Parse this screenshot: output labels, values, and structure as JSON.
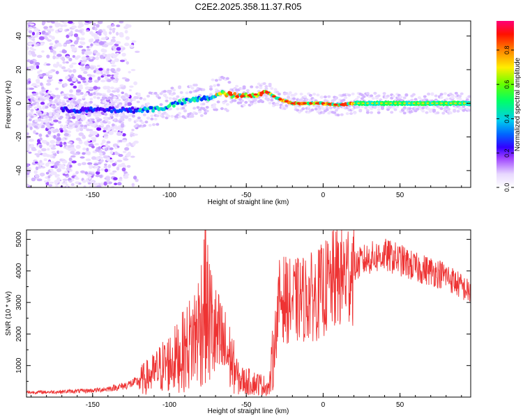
{
  "title": "C2E2.2025.358.11.37.R05",
  "chart_data": [
    {
      "type": "heatmap",
      "title": "C2E2.2025.358.11.37.R05",
      "xlabel": "Height of straight line (km)",
      "ylabel": "Frequency (Hz)",
      "xlim": [
        -193,
        96
      ],
      "ylim": [
        -50,
        49
      ],
      "xticks": [
        -150,
        -100,
        -50,
        0,
        50
      ],
      "yticks": [
        -40,
        -20,
        0,
        20,
        40
      ],
      "colorbar": {
        "label": "Normalized spectral amplitude",
        "range": [
          0,
          0.97
        ],
        "ticks": [
          0.0,
          0.2,
          0.4,
          0.6,
          0.8
        ]
      },
      "ridge": [
        {
          "x": -193,
          "y": -4
        },
        {
          "x": -160,
          "y": -4
        },
        {
          "x": -140,
          "y": -4
        },
        {
          "x": -120,
          "y": -4
        },
        {
          "x": -105,
          "y": -3
        },
        {
          "x": -95,
          "y": 0
        },
        {
          "x": -85,
          "y": 2
        },
        {
          "x": -75,
          "y": 3
        },
        {
          "x": -65,
          "y": 6
        },
        {
          "x": -55,
          "y": 4
        },
        {
          "x": -45,
          "y": 5
        },
        {
          "x": -37,
          "y": 7
        },
        {
          "x": -30,
          "y": 3
        },
        {
          "x": -20,
          "y": 0
        },
        {
          "x": -10,
          "y": 0
        },
        {
          "x": 0,
          "y": 0
        },
        {
          "x": 10,
          "y": -1
        },
        {
          "x": 20,
          "y": 0
        },
        {
          "x": 40,
          "y": 0
        },
        {
          "x": 60,
          "y": 0
        },
        {
          "x": 80,
          "y": 0
        },
        {
          "x": 96,
          "y": 0
        }
      ]
    },
    {
      "type": "line",
      "xlabel": "Height of straight line (km)",
      "ylabel": "SNR (10 * v/v)",
      "xlim": [
        -193,
        96
      ],
      "ylim": [
        0,
        5300
      ],
      "xticks": [
        -150,
        -100,
        -50,
        0,
        50
      ],
      "yticks": [
        1000,
        2000,
        3000,
        4000,
        5000
      ],
      "color": "#ee3333",
      "series": [
        {
          "name": "SNR",
          "x": [
            -193,
            -180,
            -170,
            -160,
            -150,
            -140,
            -130,
            -120,
            -115,
            -110,
            -105,
            -100,
            -95,
            -90,
            -85,
            -80,
            -77,
            -75,
            -72,
            -70,
            -65,
            -60,
            -55,
            -50,
            -45,
            -40,
            -35,
            -31,
            -28,
            -25,
            -20,
            -15,
            -10,
            -5,
            0,
            5,
            10,
            15,
            20,
            25,
            30,
            40,
            50,
            60,
            70,
            80,
            90,
            96
          ],
          "values": [
            150,
            160,
            170,
            190,
            210,
            260,
            350,
            500,
            620,
            750,
            950,
            1100,
            1250,
            1500,
            1800,
            2300,
            3200,
            2600,
            2200,
            1900,
            1600,
            1200,
            550,
            500,
            450,
            400,
            300,
            2000,
            3200,
            3100,
            3000,
            3100,
            3150,
            3200,
            3400,
            3600,
            3800,
            3900,
            4100,
            4300,
            4400,
            4500,
            4350,
            4100,
            4000,
            3850,
            3500,
            3300
          ]
        }
      ]
    }
  ]
}
